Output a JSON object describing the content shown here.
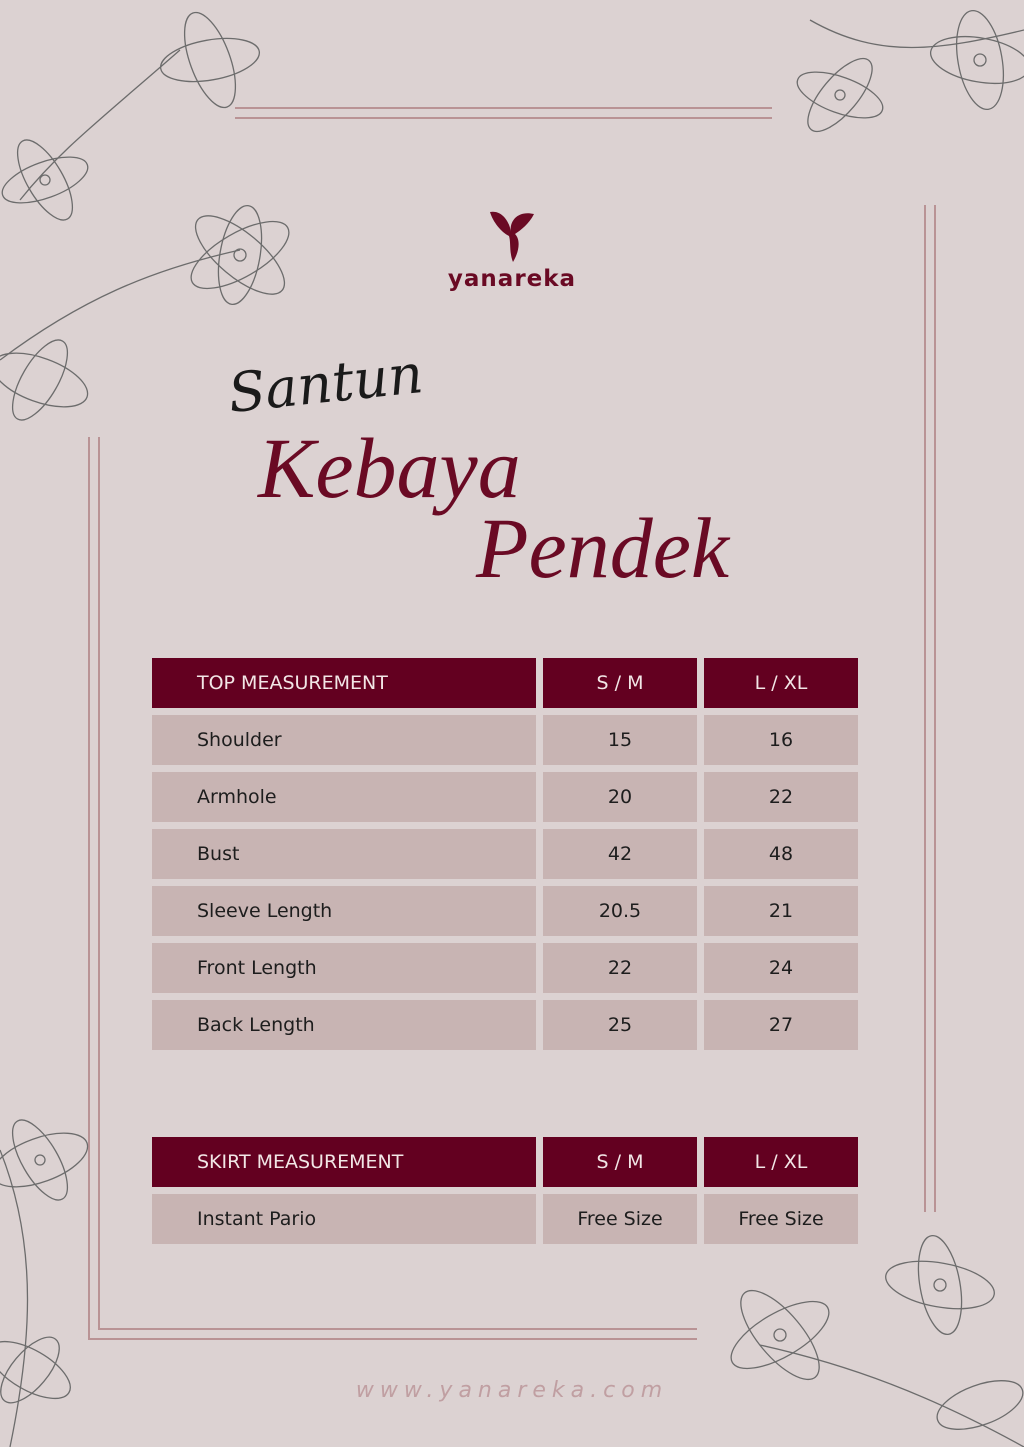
{
  "brand": {
    "name": "yanareka",
    "logo_icon": "butterfly-icon",
    "url": "www.yanareka.com"
  },
  "title": {
    "script": "Santun",
    "line1": "Kebaya",
    "line2": "Pendek"
  },
  "colors": {
    "accent": "#630020",
    "row": "#c8b4b3",
    "background": "#dcd2d2"
  },
  "top_table": {
    "headers": [
      "TOP MEASUREMENT",
      "S / M",
      "L / XL"
    ],
    "rows": [
      [
        "Shoulder",
        "15",
        "16"
      ],
      [
        "Armhole",
        "20",
        "22"
      ],
      [
        "Bust",
        "42",
        "48"
      ],
      [
        "Sleeve Length",
        "20.5",
        "21"
      ],
      [
        "Front Length",
        "22",
        "24"
      ],
      [
        "Back Length",
        "25",
        "27"
      ]
    ]
  },
  "skirt_table": {
    "headers": [
      "SKIRT MEASUREMENT",
      "S / M",
      "L / XL"
    ],
    "rows": [
      [
        "Instant Pario",
        "Free Size",
        "Free Size"
      ]
    ]
  }
}
